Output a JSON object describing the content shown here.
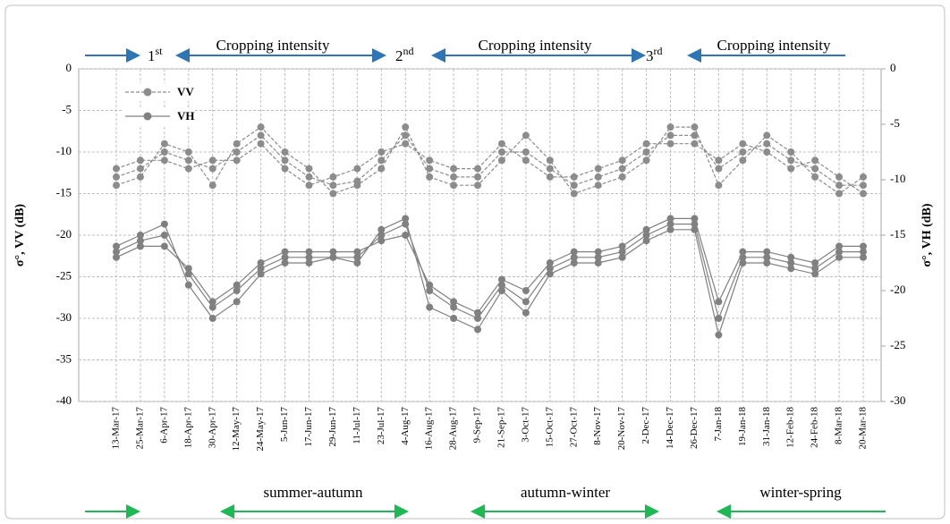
{
  "chart_data": {
    "type": "line",
    "y_label": "σ°, VV (dB)",
    "y2_label": "σ°, VH (dB)",
    "categories": [
      "13-Mar-17",
      "25-Mar-17",
      "6-Apr-17",
      "18-Apr-17",
      "30-Apr-17",
      "12-May-17",
      "24-May-17",
      "5-Jun-17",
      "17-Jun-17",
      "29-Jun-17",
      "11-Jul-17",
      "23-Jul-17",
      "4-Aug-17",
      "16-Aug-17",
      "28-Aug-17",
      "9-Sep-17",
      "21-Sep-17",
      "3-Oct-17",
      "15-Oct-17",
      "27-Oct-17",
      "8-Nov-17",
      "20-Nov-17",
      "2-Dec-17",
      "14-Dec-17",
      "26-Dec-17",
      "7-Jan-18",
      "19-Jan-18",
      "31-Jan-18",
      "12-Feb-18",
      "24-Feb-18",
      "8-Mar-18",
      "20-Mar-18"
    ],
    "ylim": [
      -40,
      0
    ],
    "yticks": [
      0,
      -5,
      -10,
      -15,
      -20,
      -25,
      -30,
      -35,
      -40
    ],
    "y2lim": [
      -30,
      0
    ],
    "y2ticks": [
      0,
      -5,
      -10,
      -15,
      -20,
      -25,
      -30
    ],
    "grid": true,
    "legend": "upper left",
    "series": [
      {
        "name": "VV",
        "color": "#8c8c8c",
        "dash": true,
        "axis": "y",
        "values": [
          [
            -13,
            -12,
            -10,
            -11,
            -12,
            -10,
            -8,
            -11,
            -13,
            -14,
            -13.5,
            -11,
            -8,
            -12,
            -13,
            -13,
            -10,
            -10,
            -12,
            -14,
            -13,
            -12,
            -10,
            -8,
            -8,
            -12,
            -10,
            -9,
            -11,
            -12,
            -14,
            -14
          ],
          [
            -14,
            -13,
            -9,
            -10,
            -14,
            -9,
            -7,
            -10,
            -12,
            -15,
            -14,
            -12,
            -7,
            -13,
            -14,
            -14,
            -11,
            -8,
            -11,
            -15,
            -14,
            -13,
            -11,
            -7,
            -7,
            -14,
            -11,
            -8,
            -10,
            -13,
            -15,
            -13
          ],
          [
            -12,
            -11,
            -11,
            -12,
            -11,
            -11,
            -9,
            -12,
            -14,
            -13,
            -12,
            -10,
            -9,
            -11,
            -12,
            -12,
            -9,
            -11,
            -13,
            -13,
            -12,
            -11,
            -9,
            -9,
            -9,
            -11,
            -9,
            -10,
            -12,
            -11,
            -13,
            -15
          ]
        ]
      },
      {
        "name": "VH",
        "color": "#808080",
        "dash": false,
        "axis": "y2",
        "values": [
          [
            -16.5,
            -15.5,
            -15,
            -18.5,
            -21.5,
            -20,
            -18,
            -17,
            -17,
            -17,
            -17,
            -15,
            -14,
            -20,
            -21.5,
            -22.5,
            -19.5,
            -21,
            -18,
            -17,
            -17,
            -16.5,
            -15,
            -14,
            -14,
            -22.5,
            -17,
            -17,
            -17.5,
            -18,
            -16.5,
            -16.5
          ],
          [
            -16,
            -15,
            -14,
            -19.5,
            -22.5,
            -21,
            -18.5,
            -17.5,
            -17.5,
            -17,
            -17.5,
            -14.5,
            -13.5,
            -21.5,
            -22.5,
            -23.5,
            -20,
            -22,
            -18.5,
            -17.5,
            -17.5,
            -17,
            -15.5,
            -14.5,
            -14.5,
            -24,
            -17.5,
            -17.5,
            -18,
            -18.5,
            -17,
            -17
          ],
          [
            -17,
            -16,
            -16,
            -18,
            -21,
            -19.5,
            -17.5,
            -16.5,
            -16.5,
            -16.5,
            -16.5,
            -15.5,
            -15,
            -19.5,
            -21,
            -22,
            -19,
            -20,
            -17.5,
            -16.5,
            -16.5,
            -16,
            -14.5,
            -13.5,
            -13.5,
            -21,
            -16.5,
            -16.5,
            -17,
            -17.5,
            -16,
            -16
          ]
        ]
      }
    ],
    "top_annotations": [
      {
        "ordinal": "1",
        "suffix": "st"
      },
      {
        "ordinal": "2",
        "suffix": "nd"
      },
      {
        "ordinal": "3",
        "suffix": "rd"
      }
    ],
    "cropping_labels": [
      "Cropping intensity",
      "Cropping intensity",
      "Cropping intensity"
    ],
    "season_labels": [
      "summer-autumn",
      "autumn-winter",
      "winter-spring"
    ]
  }
}
